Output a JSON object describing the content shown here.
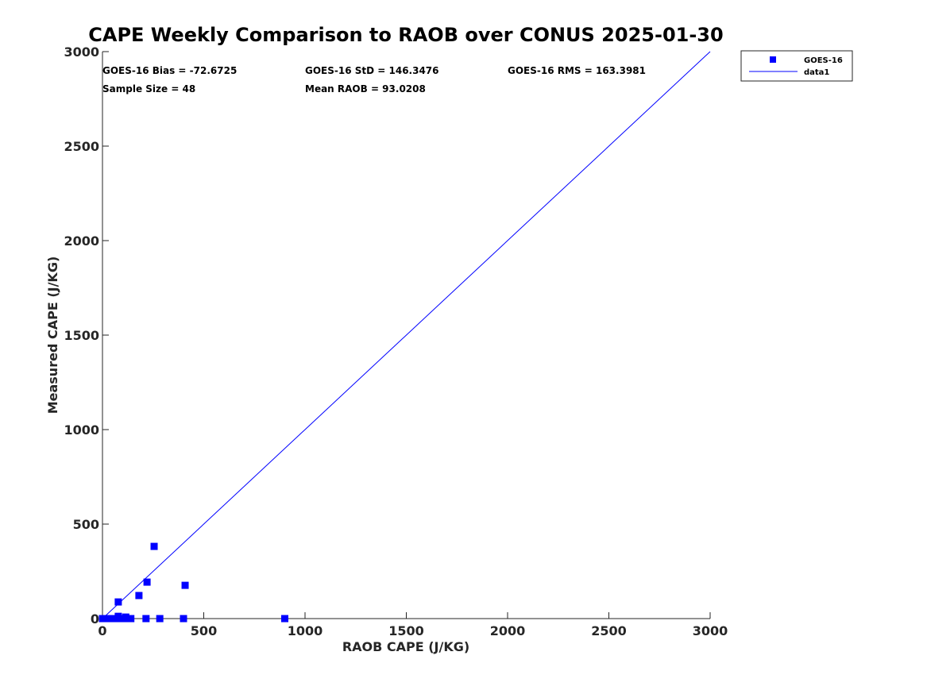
{
  "chart_data": {
    "type": "scatter",
    "title": "CAPE Weekly Comparison to RAOB over CONUS 2025-01-30",
    "xlabel": "RAOB CAPE (J/KG)",
    "ylabel": "Measured CAPE (J/KG)",
    "xlim": [
      0,
      3000
    ],
    "ylim": [
      0,
      3000
    ],
    "xticks": [
      "0",
      "500",
      "1000",
      "1500",
      "2000",
      "2500",
      "3000"
    ],
    "yticks": [
      "0",
      "500",
      "1000",
      "1500",
      "2000",
      "2500",
      "3000"
    ],
    "xtick_values": [
      0,
      500,
      1000,
      1500,
      2000,
      2500,
      3000
    ],
    "ytick_values": [
      0,
      500,
      1000,
      1500,
      2000,
      2500,
      3000
    ],
    "grid": false,
    "legend_position": "outside-top-right",
    "annotations": [
      "GOES-16 Bias = -72.6725",
      "GOES-16 StD = 146.3476",
      "GOES-16 RMS = 163.3981",
      "Sample Size = 48",
      "Mean RAOB = 93.0208"
    ],
    "series": [
      {
        "name": "GOES-16",
        "kind": "scatter",
        "color": "#0000ff",
        "points": [
          [
            0,
            0
          ],
          [
            3,
            0
          ],
          [
            6,
            0
          ],
          [
            10,
            0
          ],
          [
            15,
            0
          ],
          [
            20,
            0
          ],
          [
            25,
            0
          ],
          [
            30,
            0
          ],
          [
            38,
            0
          ],
          [
            45,
            0
          ],
          [
            52,
            0
          ],
          [
            60,
            0
          ],
          [
            68,
            0
          ],
          [
            75,
            0
          ],
          [
            82,
            0
          ],
          [
            90,
            0
          ],
          [
            100,
            0
          ],
          [
            110,
            0
          ],
          [
            118,
            0
          ],
          [
            125,
            0
          ],
          [
            140,
            0
          ],
          [
            215,
            0
          ],
          [
            283,
            0
          ],
          [
            400,
            0
          ],
          [
            900,
            0
          ],
          [
            78,
            12
          ],
          [
            115,
            8
          ],
          [
            78,
            88
          ],
          [
            180,
            122
          ],
          [
            220,
            193
          ],
          [
            408,
            176
          ],
          [
            255,
            382
          ]
        ]
      },
      {
        "name": "data1",
        "kind": "line",
        "color": "#0000ff",
        "points": [
          [
            0,
            0
          ],
          [
            3000,
            3000
          ]
        ]
      }
    ]
  }
}
